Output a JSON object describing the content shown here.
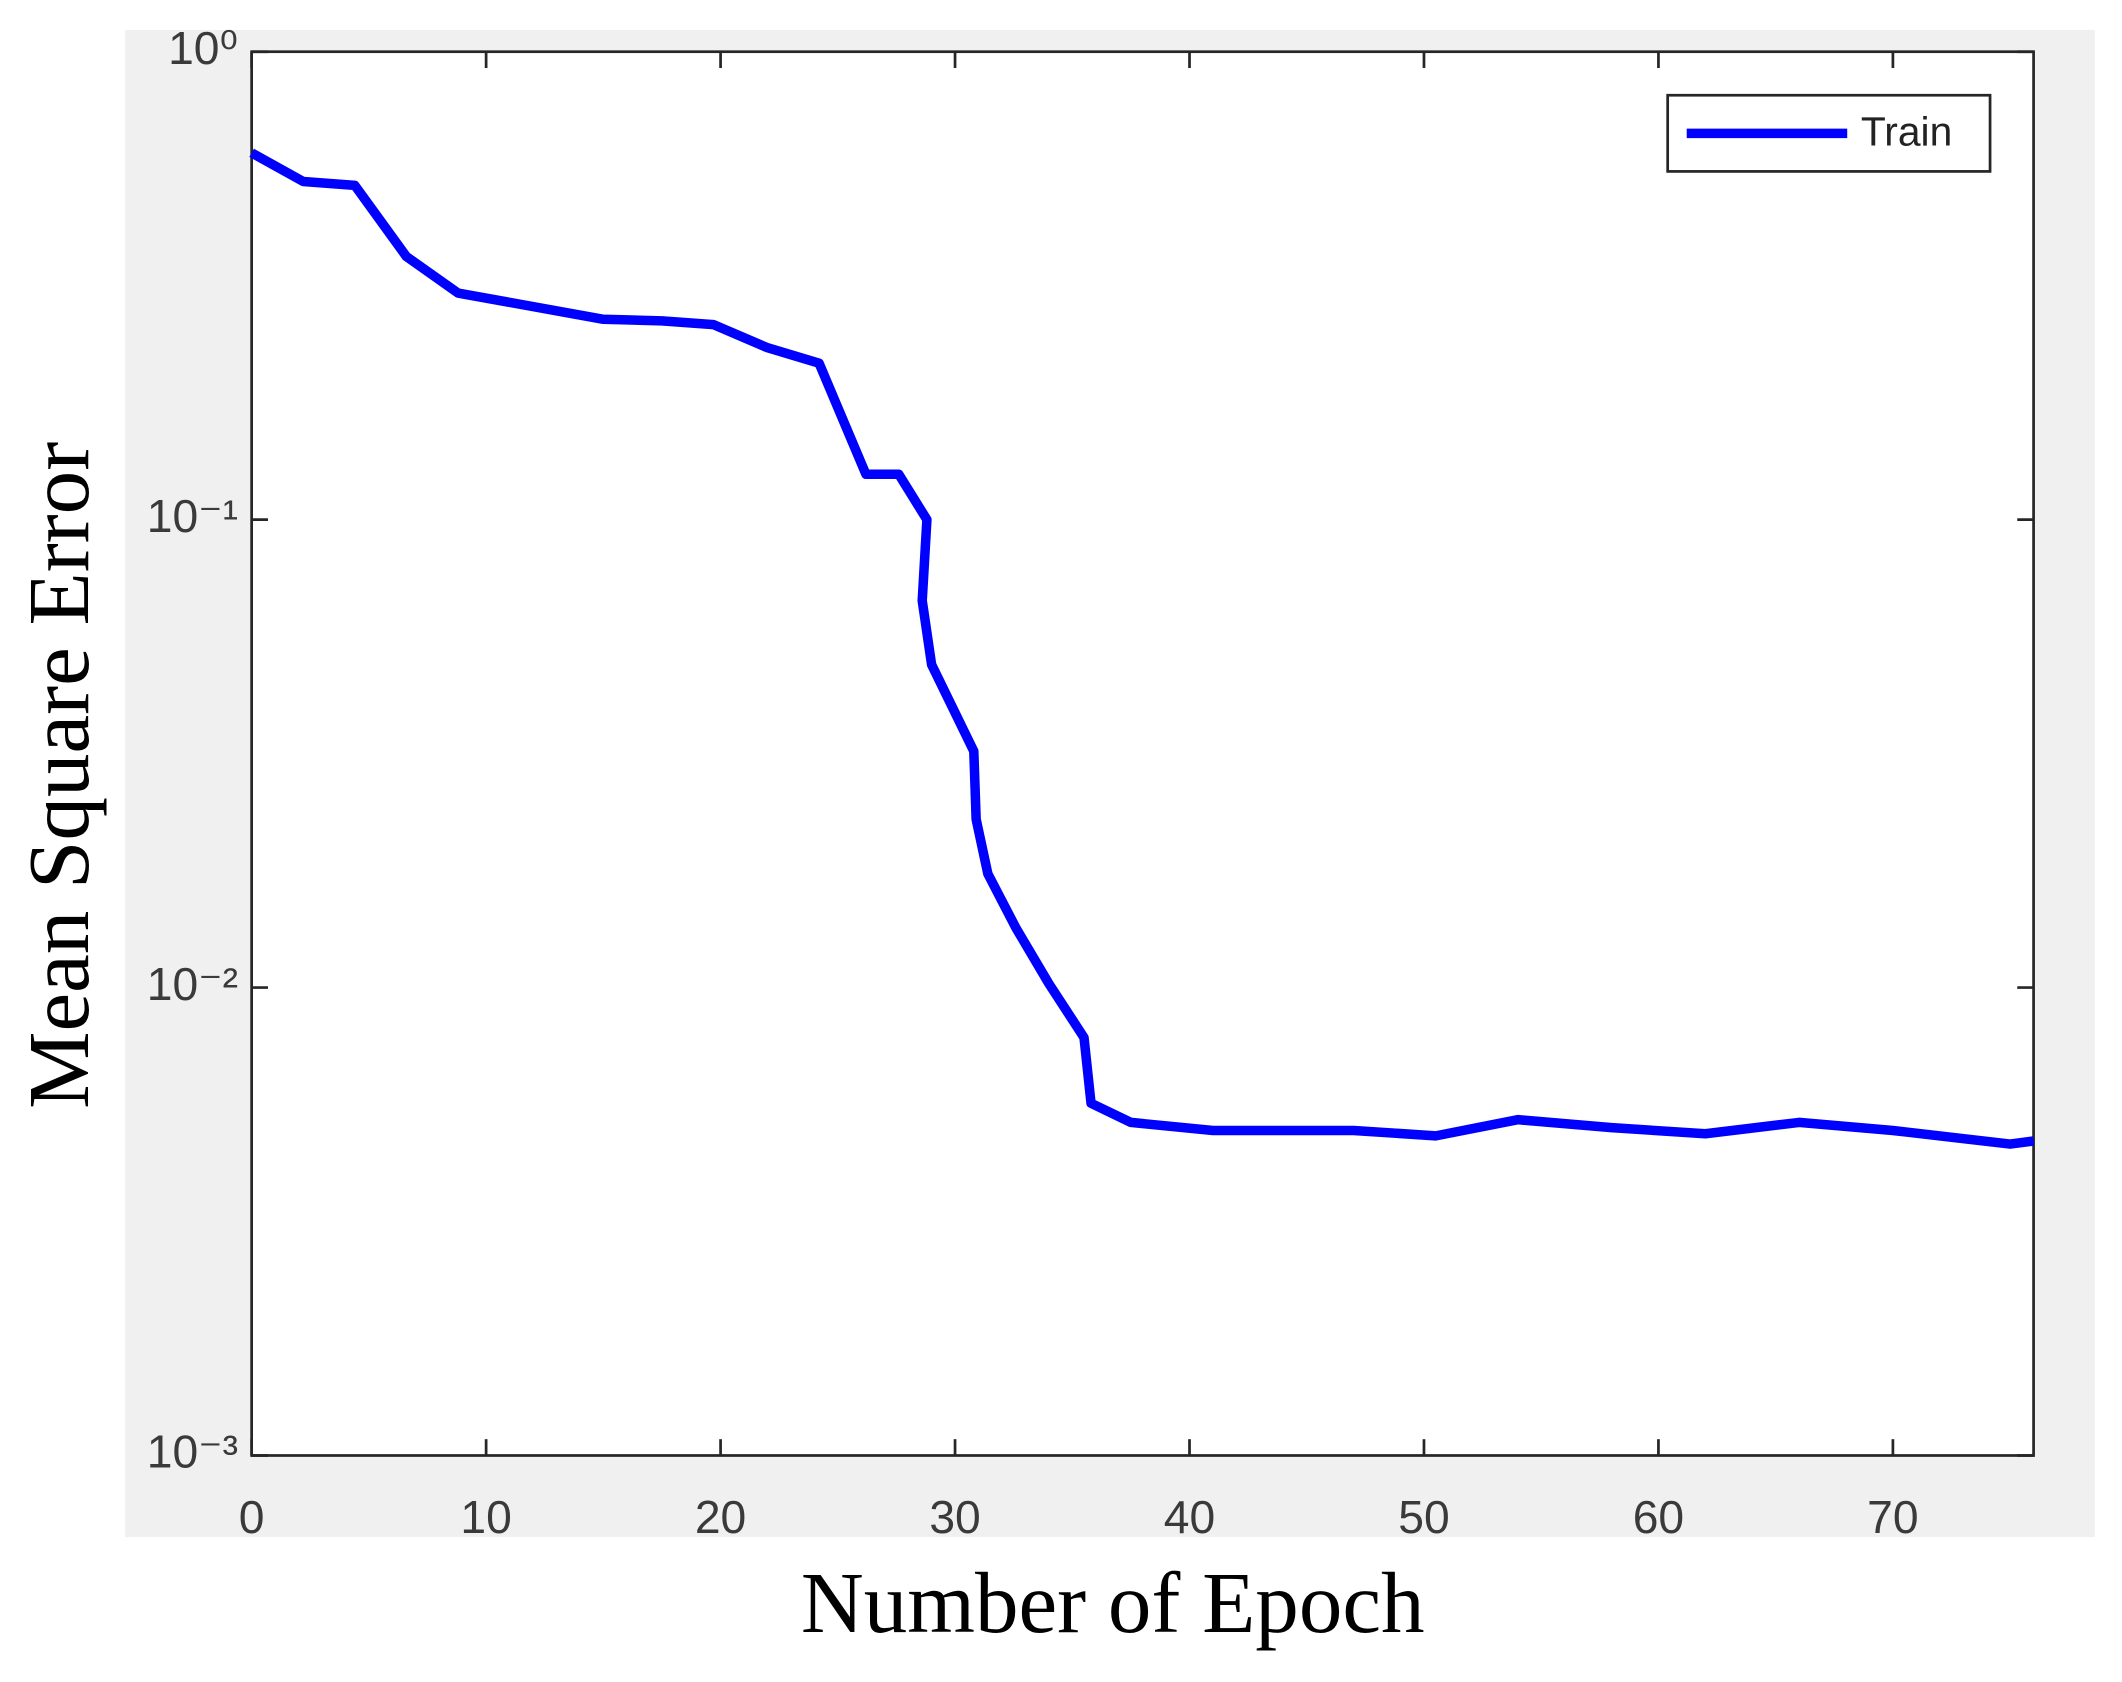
{
  "chart_data": {
    "type": "line",
    "xlabel": "Number of Epoch",
    "ylabel": "Mean Square Error",
    "x": [
      0,
      2.2,
      4.4,
      6.6,
      8.8,
      15,
      17.5,
      19.7,
      22,
      24.2,
      26.2,
      27.6,
      28.8,
      28.6,
      29,
      30.8,
      30.9,
      31.4,
      32.6,
      34,
      35.5,
      35.8,
      37.5,
      41,
      47,
      50.5,
      54,
      58,
      62,
      66,
      70,
      75,
      76
    ],
    "series": [
      {
        "name": "Train",
        "color": "#0000ff",
        "values": [
          0.608,
          0.528,
          0.518,
          0.365,
          0.305,
          0.268,
          0.266,
          0.261,
          0.233,
          0.216,
          0.125,
          0.125,
          0.1,
          0.0671,
          0.049,
          0.032,
          0.0229,
          0.0175,
          0.0134,
          0.0102,
          0.00782,
          0.00566,
          0.00515,
          0.00495,
          0.00495,
          0.00482,
          0.00522,
          0.00502,
          0.00487,
          0.00515,
          0.00495,
          0.00463,
          0.0047
        ]
      }
    ],
    "xlim": [
      0,
      76
    ],
    "xticks": [
      0,
      10,
      20,
      30,
      40,
      50,
      60,
      70
    ],
    "ylim": [
      0.001,
      1
    ],
    "yscale": "log",
    "yticks": [
      {
        "value": 0.001,
        "label": "10⁻³"
      },
      {
        "value": 0.01,
        "label": "10⁻²"
      },
      {
        "value": 0.1,
        "label": "10⁻¹"
      },
      {
        "value": 1,
        "label": "10⁰"
      }
    ],
    "legend": "upper right"
  }
}
